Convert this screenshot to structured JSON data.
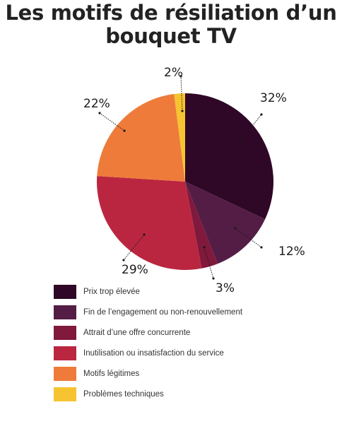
{
  "chart_data": {
    "type": "pie",
    "title_lines": [
      "Les motifs de résiliation d’un",
      "bouquet TV"
    ],
    "slices": [
      {
        "name": "Prix trop élevée",
        "value": 32,
        "label": "32%",
        "color": "#2e0826"
      },
      {
        "name": "Fin de l’engagement ou non-renouvellement",
        "value": 12,
        "label": "12%",
        "color": "#541d45"
      },
      {
        "name": "Attrait d’une offre concurrente",
        "value": 3,
        "label": "3%",
        "color": "#80193c"
      },
      {
        "name": "Inutilisation ou insatisfaction du service",
        "value": 29,
        "label": "29%",
        "color": "#ba2640"
      },
      {
        "name": "Motifs légitimes",
        "value": 22,
        "label": "22%",
        "color": "#ee7b3a"
      },
      {
        "name": "Problèmes techniques",
        "value": 2,
        "label": "2%",
        "color": "#f6c431"
      }
    ],
    "start_angle_deg": 0,
    "direction": "clockwise",
    "legend_position": "bottom-left"
  }
}
